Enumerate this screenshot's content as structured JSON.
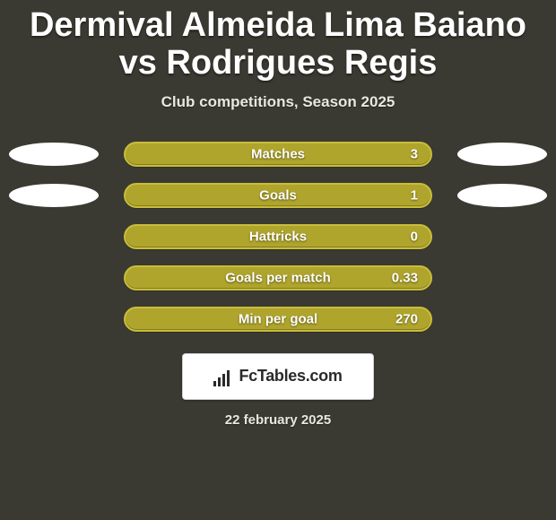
{
  "colors": {
    "background": "#3a3a32",
    "title": "#ffffff",
    "subtitle": "#e8e8e0",
    "row_text": "#ffffff",
    "date_text": "#e8e8e0",
    "left_oval": "#ffffff",
    "right_oval_1": "#ffffff",
    "right_oval_2": "#ffffff",
    "pill_fill": "#b0a52c",
    "pill_border": "#c9bd3a",
    "logo_bg": "#ffffff"
  },
  "typography": {
    "title_fontsize": 38,
    "subtitle_fontsize": 17,
    "row_label_fontsize": 15,
    "row_value_fontsize": 15,
    "logo_fontsize": 18,
    "date_fontsize": 15
  },
  "layout": {
    "pill_width": 344,
    "oval_width": 100,
    "oval_height": 26,
    "row_gap": 18
  },
  "title": "Dermival Almeida Lima Baiano vs Rodrigues Regis",
  "subtitle": "Club competitions, Season 2025",
  "rows": [
    {
      "label": "Matches",
      "value": "3",
      "left_oval": true,
      "right_oval": true
    },
    {
      "label": "Goals",
      "value": "1",
      "left_oval": true,
      "right_oval": true
    },
    {
      "label": "Hattricks",
      "value": "0",
      "left_oval": false,
      "right_oval": false
    },
    {
      "label": "Goals per match",
      "value": "0.33",
      "left_oval": false,
      "right_oval": false
    },
    {
      "label": "Min per goal",
      "value": "270",
      "left_oval": false,
      "right_oval": false
    }
  ],
  "logo_text": "FcTables.com",
  "date": "22 february 2025"
}
